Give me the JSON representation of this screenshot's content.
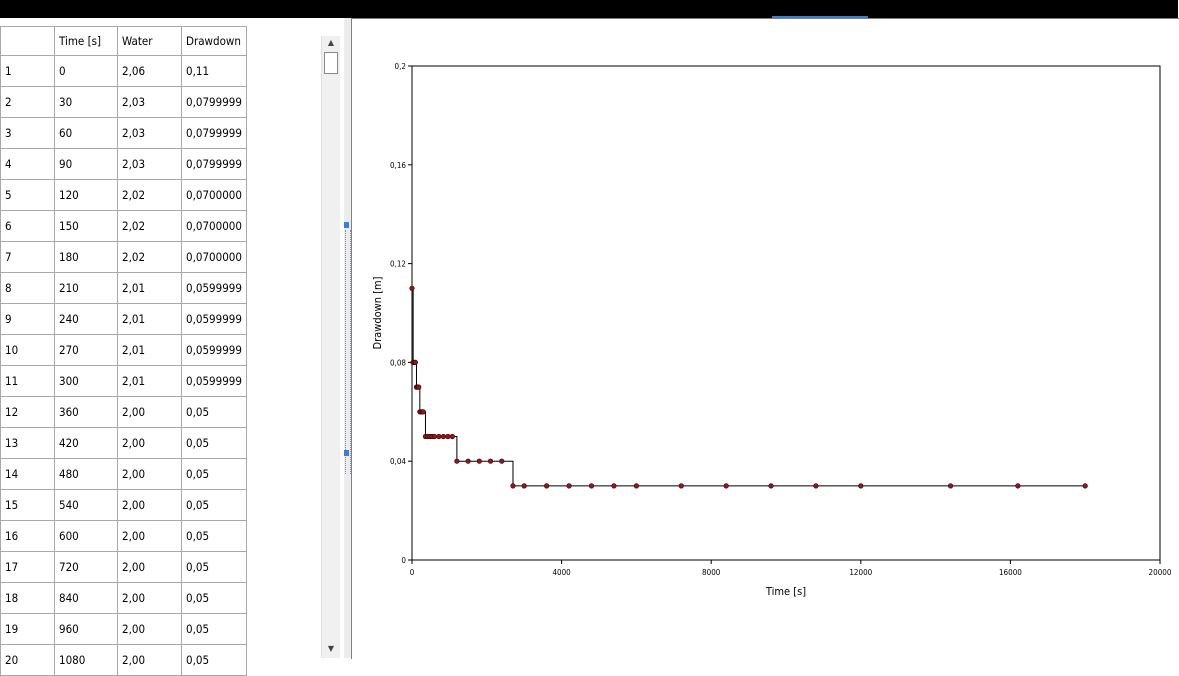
{
  "table": {
    "columns": [
      "",
      "Time [s]",
      "Water",
      "Drawdown"
    ],
    "rows": [
      [
        "1",
        "0",
        "2,06",
        "0,11"
      ],
      [
        "2",
        "30",
        "2,03",
        "0,0799999"
      ],
      [
        "3",
        "60",
        "2,03",
        "0,0799999"
      ],
      [
        "4",
        "90",
        "2,03",
        "0,0799999"
      ],
      [
        "5",
        "120",
        "2,02",
        "0,0700000"
      ],
      [
        "6",
        "150",
        "2,02",
        "0,0700000"
      ],
      [
        "7",
        "180",
        "2,02",
        "0,0700000"
      ],
      [
        "8",
        "210",
        "2,01",
        "0,0599999"
      ],
      [
        "9",
        "240",
        "2,01",
        "0,0599999"
      ],
      [
        "10",
        "270",
        "2,01",
        "0,0599999"
      ],
      [
        "11",
        "300",
        "2,01",
        "0,0599999"
      ],
      [
        "12",
        "360",
        "2,00",
        "0,05"
      ],
      [
        "13",
        "420",
        "2,00",
        "0,05"
      ],
      [
        "14",
        "480",
        "2,00",
        "0,05"
      ],
      [
        "15",
        "540",
        "2,00",
        "0,05"
      ],
      [
        "16",
        "600",
        "2,00",
        "0,05"
      ],
      [
        "17",
        "720",
        "2,00",
        "0,05"
      ],
      [
        "18",
        "840",
        "2,00",
        "0,05"
      ],
      [
        "19",
        "960",
        "2,00",
        "0,05"
      ],
      [
        "20",
        "1080",
        "2,00",
        "0,05"
      ]
    ]
  },
  "scrollbar": {
    "up_glyph": "▲",
    "down_glyph": "▼"
  },
  "colors": {
    "line": "#000000",
    "marker_fill": "#8b1a1a",
    "marker_stroke": "#3a0000",
    "grid": "#808080"
  },
  "chart_data": {
    "type": "line",
    "title": "",
    "xlabel": "Time [s]",
    "ylabel": "Drawdown [m]",
    "xlim": [
      0,
      20000
    ],
    "ylim": [
      0,
      0.2
    ],
    "x_ticks": [
      "0",
      "4000",
      "8000",
      "12000",
      "16000",
      "20000"
    ],
    "y_ticks": [
      "0",
      "0,04",
      "0,08",
      "0,12",
      "0,16",
      "0,2"
    ],
    "grid": false,
    "series": [
      {
        "x": [
          0,
          30,
          60,
          90,
          120,
          150,
          180,
          210,
          240,
          270,
          300,
          360,
          420,
          480,
          540,
          600,
          720,
          840,
          960,
          1080,
          1200,
          1500,
          1800,
          2100,
          2400,
          2700,
          3000,
          3600,
          4200,
          4800,
          5400,
          6000,
          7200,
          8400,
          9600,
          10800,
          12000,
          14400,
          16200,
          18000
        ],
        "y": [
          0.11,
          0.08,
          0.08,
          0.08,
          0.07,
          0.07,
          0.07,
          0.06,
          0.06,
          0.06,
          0.06,
          0.05,
          0.05,
          0.05,
          0.05,
          0.05,
          0.05,
          0.05,
          0.05,
          0.05,
          0.04,
          0.04,
          0.04,
          0.04,
          0.04,
          0.03,
          0.03,
          0.03,
          0.03,
          0.03,
          0.03,
          0.03,
          0.03,
          0.03,
          0.03,
          0.03,
          0.03,
          0.03,
          0.03,
          0.03
        ]
      }
    ]
  }
}
